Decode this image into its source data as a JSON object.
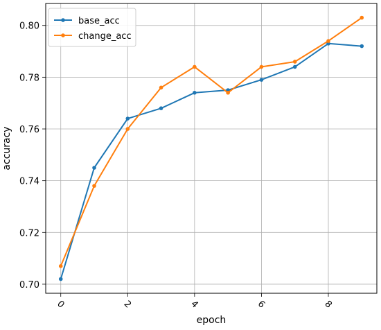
{
  "chart_data": {
    "type": "line",
    "x": [
      0,
      1,
      2,
      3,
      4,
      5,
      6,
      7,
      8,
      9
    ],
    "series": [
      {
        "name": "base_acc",
        "color": "#1f77b4",
        "values": [
          0.702,
          0.745,
          0.764,
          0.768,
          0.774,
          0.775,
          0.779,
          0.784,
          0.793,
          0.792
        ]
      },
      {
        "name": "change_acc",
        "color": "#ff7f0e",
        "values": [
          0.707,
          0.738,
          0.76,
          0.776,
          0.784,
          0.774,
          0.784,
          0.786,
          0.794,
          0.803
        ]
      }
    ],
    "xlabel": "epoch",
    "ylabel": "accuracy",
    "xlim": [
      -0.45,
      9.45
    ],
    "ylim": [
      0.6965,
      0.8085
    ],
    "xticks": [
      0,
      2,
      4,
      6,
      8
    ],
    "xtick_labels": [
      "0",
      "2",
      "4",
      "6",
      "8"
    ],
    "yticks": [
      0.7,
      0.72,
      0.74,
      0.76,
      0.78,
      0.8
    ],
    "ytick_labels": [
      "0.70",
      "0.72",
      "0.74",
      "0.76",
      "0.78",
      "0.80"
    ],
    "xtick_rotation_deg": 45,
    "grid": true,
    "legend_position": "top-left"
  }
}
